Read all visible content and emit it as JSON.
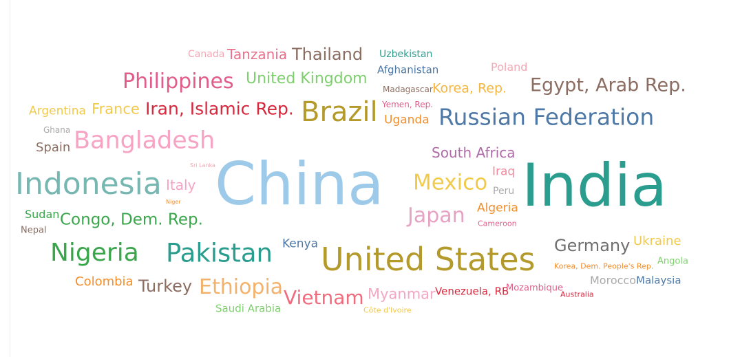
{
  "chart_data": {
    "type": "wordcloud",
    "words": [
      {
        "text": "Canada",
        "color": "#f4a7b4",
        "size": 14
      },
      {
        "text": "Tanzania",
        "color": "#e8708a",
        "size": 20
      },
      {
        "text": "Thailand",
        "color": "#8c6d62",
        "size": 24
      },
      {
        "text": "Uzbekistan",
        "color": "#2a9d8f",
        "size": 14
      },
      {
        "text": "Afghanistan",
        "color": "#4e79a7",
        "size": 15
      },
      {
        "text": "Poland",
        "color": "#f4a7b4",
        "size": 16
      },
      {
        "text": "Philippines",
        "color": "#e15c8a",
        "size": 30
      },
      {
        "text": "United Kingdom",
        "color": "#7ecf6e",
        "size": 22
      },
      {
        "text": "Madagascar",
        "color": "#8c6d62",
        "size": 12
      },
      {
        "text": "Korea, Rep.",
        "color": "#f3b63f",
        "size": 19
      },
      {
        "text": "Egypt, Arab Rep.",
        "color": "#8c6d62",
        "size": 27
      },
      {
        "text": "Argentina",
        "color": "#f1c94b",
        "size": 17
      },
      {
        "text": "France",
        "color": "#f1c94b",
        "size": 21
      },
      {
        "text": "Iran, Islamic Rep.",
        "color": "#d6273d",
        "size": 25
      },
      {
        "text": "Brazil",
        "color": "#b39a2a",
        "size": 40
      },
      {
        "text": "Yemen, Rep.",
        "color": "#e15c8a",
        "size": 12
      },
      {
        "text": "Uganda",
        "color": "#f28e2b",
        "size": 17
      },
      {
        "text": "Russian Federation",
        "color": "#4e79a7",
        "size": 33
      },
      {
        "text": "Ghana",
        "color": "#a9a9a9",
        "size": 12
      },
      {
        "text": "Spain",
        "color": "#8c6d62",
        "size": 18
      },
      {
        "text": "Bangladesh",
        "color": "#f7a3c4",
        "size": 35
      },
      {
        "text": "South Africa",
        "color": "#b06ca8",
        "size": 20
      },
      {
        "text": "Sri Lanka",
        "color": "#f4a7b4",
        "size": 8
      },
      {
        "text": "Iraq",
        "color": "#f28ba0",
        "size": 17
      },
      {
        "text": "Indonesia",
        "color": "#76b7b2",
        "size": 44
      },
      {
        "text": "Italy",
        "color": "#f7a3c4",
        "size": 20
      },
      {
        "text": "China",
        "color": "#9ecae9",
        "size": 86
      },
      {
        "text": "Mexico",
        "color": "#f1c94b",
        "size": 31
      },
      {
        "text": "Peru",
        "color": "#a9a9a9",
        "size": 14
      },
      {
        "text": "India",
        "color": "#2a9d8f",
        "size": 86
      },
      {
        "text": "Niger",
        "color": "#f28e2b",
        "size": 8
      },
      {
        "text": "Sudan",
        "color": "#3aa64b",
        "size": 16
      },
      {
        "text": "Algeria",
        "color": "#f28e2b",
        "size": 17
      },
      {
        "text": "Japan",
        "color": "#e7a3c4",
        "size": 30
      },
      {
        "text": "Nepal",
        "color": "#8c6d62",
        "size": 13
      },
      {
        "text": "Congo, Dem. Rep.",
        "color": "#3aa64b",
        "size": 23
      },
      {
        "text": "Cameroon",
        "color": "#e15c8a",
        "size": 11
      },
      {
        "text": "Kenya",
        "color": "#4e79a7",
        "size": 17
      },
      {
        "text": "Germany",
        "color": "#6f6f6f",
        "size": 24
      },
      {
        "text": "Ukraine",
        "color": "#f1c94b",
        "size": 18
      },
      {
        "text": "Nigeria",
        "color": "#3aa64b",
        "size": 36
      },
      {
        "text": "Pakistan",
        "color": "#2a9d8f",
        "size": 37
      },
      {
        "text": "United States",
        "color": "#b39a2a",
        "size": 46
      },
      {
        "text": "Korea, Dem. People's Rep.",
        "color": "#f28e2b",
        "size": 11
      },
      {
        "text": "Angola",
        "color": "#7ecf6e",
        "size": 13
      },
      {
        "text": "Colombia",
        "color": "#f28e2b",
        "size": 18
      },
      {
        "text": "Turkey",
        "color": "#8c6d62",
        "size": 24
      },
      {
        "text": "Ethiopia",
        "color": "#f3b26b",
        "size": 30
      },
      {
        "text": "Morocco",
        "color": "#a9a9a9",
        "size": 16
      },
      {
        "text": "Malaysia",
        "color": "#4e79a7",
        "size": 15
      },
      {
        "text": "Vietnam",
        "color": "#f06b7d",
        "size": 28
      },
      {
        "text": "Myanmar",
        "color": "#f4a7c4",
        "size": 21
      },
      {
        "text": "Venezuela, RB",
        "color": "#d6273d",
        "size": 15
      },
      {
        "text": "Mozambique",
        "color": "#e15c8a",
        "size": 13
      },
      {
        "text": "Australia",
        "color": "#d6273d",
        "size": 11
      },
      {
        "text": "Saudi Arabia",
        "color": "#7ecf6e",
        "size": 15
      },
      {
        "text": "Côte d'Ivoire",
        "color": "#f1c94b",
        "size": 11
      }
    ]
  }
}
